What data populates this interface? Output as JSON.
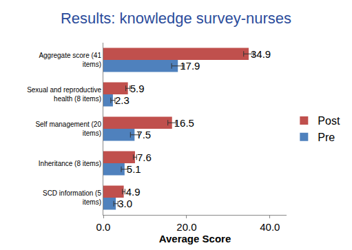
{
  "chart_data": {
    "type": "bar",
    "orientation": "horizontal",
    "title": "Results: knowledge survey-nurses",
    "x_label": "Average Score",
    "categories": [
      "Aggregate score (41 items)",
      "Sexual and reproductive health (8 items)",
      "Self management (20 items)",
      "Inheritance (8 items)",
      "SCD information (5 items)"
    ],
    "series": [
      {
        "name": "Post",
        "color": "#C0504D",
        "values": [
          34.9,
          5.9,
          16.5,
          7.6,
          4.9
        ],
        "value_labels": [
          "34.9",
          "5.9",
          "16.5",
          "7.6",
          "4.9"
        ],
        "errors": [
          1.2,
          0.5,
          1.0,
          0.4,
          0.3
        ]
      },
      {
        "name": "Pre",
        "color": "#4F81BD",
        "values": [
          17.9,
          2.3,
          7.5,
          5.1,
          3.0
        ],
        "value_labels": [
          "17.9",
          "2.3",
          "7.5",
          "5.1",
          "3.0"
        ],
        "errors": [
          1.5,
          0.5,
          1.0,
          0.8,
          0.5
        ]
      }
    ],
    "xlim": [
      0,
      44
    ],
    "xticks": [
      {
        "value": 0,
        "label": "0.0"
      },
      {
        "value": 20,
        "label": "20.0"
      },
      {
        "value": 40,
        "label": "40.0"
      }
    ],
    "grid": false,
    "legend": "right",
    "data_labels": true
  }
}
